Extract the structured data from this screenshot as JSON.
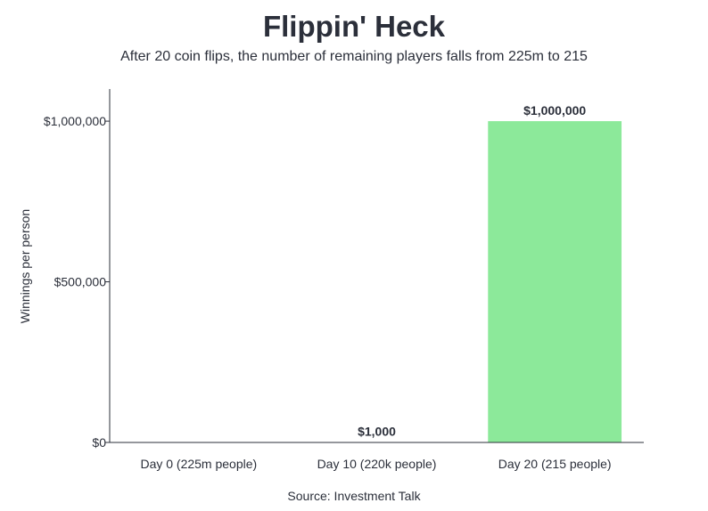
{
  "chart_data": {
    "type": "bar",
    "title": "Flippin' Heck",
    "subtitle": "After 20 coin flips, the number of remaining players falls from 225m to 215",
    "categories": [
      "Day 0 (225m people)",
      "Day 10 (220k people)",
      "Day 20 (215 people)"
    ],
    "values": [
      1,
      1000,
      1000000
    ],
    "data_labels": [
      "",
      "$1,000",
      "$1,000,000"
    ],
    "xlabel": "",
    "ylabel": "Winnings per person",
    "ylim": [
      0,
      1100000
    ],
    "yticks": [
      0,
      500000,
      1000000
    ],
    "ytick_labels": [
      "$0",
      "$500,000",
      "$1,000,000"
    ],
    "grid": false,
    "bar_color": "#8ce99a",
    "source": "Source: Investment Talk"
  }
}
